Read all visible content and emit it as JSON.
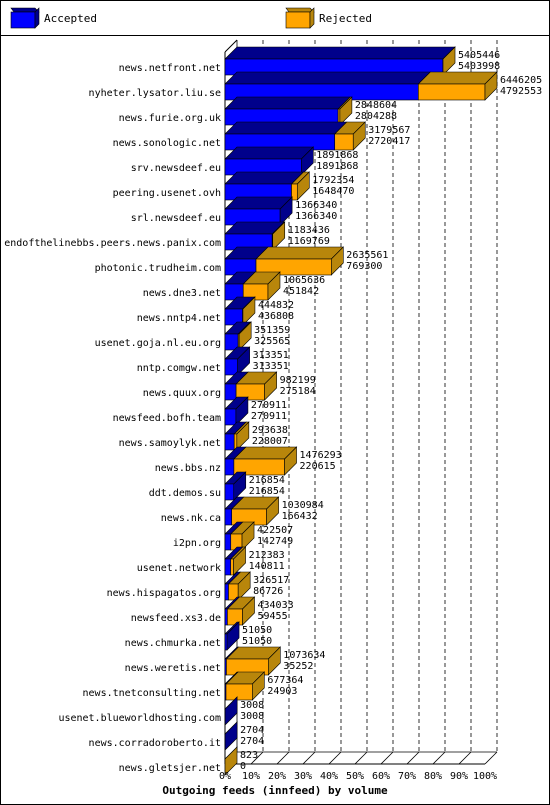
{
  "legend": {
    "accepted_label": "Accepted",
    "rejected_label": "Rejected",
    "accepted_color": "#0000ff",
    "rejected_color": "#ffa500"
  },
  "chart_data": {
    "type": "bar",
    "orientation": "horizontal",
    "stacked": true,
    "title": "Outgoing feeds (innfeed) by volume",
    "x_tick_labels": [
      "0%",
      "10%",
      "20%",
      "30%",
      "40%",
      "50%",
      "60%",
      "70%",
      "80%",
      "90%",
      "100%"
    ],
    "xlim": [
      0,
      6446205
    ],
    "grid": "dashed vertical at 10% steps",
    "legend_position": "top",
    "series": [
      {
        "name": "Accepted",
        "color": "#0000ff"
      },
      {
        "name": "Rejected",
        "color": "#ffa500"
      }
    ],
    "rows": [
      {
        "label": "news.netfront.net",
        "total": 5405446,
        "accepted": 5403998
      },
      {
        "label": "nyheter.lysator.liu.se",
        "total": 6446205,
        "accepted": 4792553
      },
      {
        "label": "news.furie.org.uk",
        "total": 2848604,
        "accepted": 2804288
      },
      {
        "label": "news.sonologic.net",
        "total": 3179567,
        "accepted": 2720417
      },
      {
        "label": "srv.newsdeef.eu",
        "total": 1891868,
        "accepted": 1891868
      },
      {
        "label": "peering.usenet.ovh",
        "total": 1792354,
        "accepted": 1648470
      },
      {
        "label": "srl.newsdeef.eu",
        "total": 1366340,
        "accepted": 1366340
      },
      {
        "label": "endofthelinebbs.peers.news.panix.com",
        "total": 1183436,
        "accepted": 1169769
      },
      {
        "label": "photonic.trudheim.com",
        "total": 2635561,
        "accepted": 769300
      },
      {
        "label": "news.dne3.net",
        "total": 1065636,
        "accepted": 451842
      },
      {
        "label": "news.nntp4.net",
        "total": 444832,
        "accepted": 436808
      },
      {
        "label": "usenet.goja.nl.eu.org",
        "total": 351359,
        "accepted": 325565
      },
      {
        "label": "nntp.comgw.net",
        "total": 313351,
        "accepted": 313351
      },
      {
        "label": "news.quux.org",
        "total": 982199,
        "accepted": 275184
      },
      {
        "label": "newsfeed.bofh.team",
        "total": 270911,
        "accepted": 270911
      },
      {
        "label": "news.samoylyk.net",
        "total": 293638,
        "accepted": 228007
      },
      {
        "label": "news.bbs.nz",
        "total": 1476293,
        "accepted": 220615
      },
      {
        "label": "ddt.demos.su",
        "total": 216854,
        "accepted": 216854
      },
      {
        "label": "news.nk.ca",
        "total": 1030984,
        "accepted": 166432
      },
      {
        "label": "i2pn.org",
        "total": 422507,
        "accepted": 142749
      },
      {
        "label": "usenet.network",
        "total": 212383,
        "accepted": 140811
      },
      {
        "label": "news.hispagatos.org",
        "total": 326517,
        "accepted": 86726
      },
      {
        "label": "newsfeed.xs3.de",
        "total": 434033,
        "accepted": 59455
      },
      {
        "label": "news.chmurka.net",
        "total": 51050,
        "accepted": 51050
      },
      {
        "label": "news.weretis.net",
        "total": 1073634,
        "accepted": 35252
      },
      {
        "label": "news.tnetconsulting.net",
        "total": 677364,
        "accepted": 24903
      },
      {
        "label": "usenet.blueworldhosting.com",
        "total": 3008,
        "accepted": 3008
      },
      {
        "label": "news.corradoroberto.it",
        "total": 2704,
        "accepted": 2704
      },
      {
        "label": "news.gletsjer.net",
        "total": 823,
        "accepted": 0
      }
    ]
  }
}
